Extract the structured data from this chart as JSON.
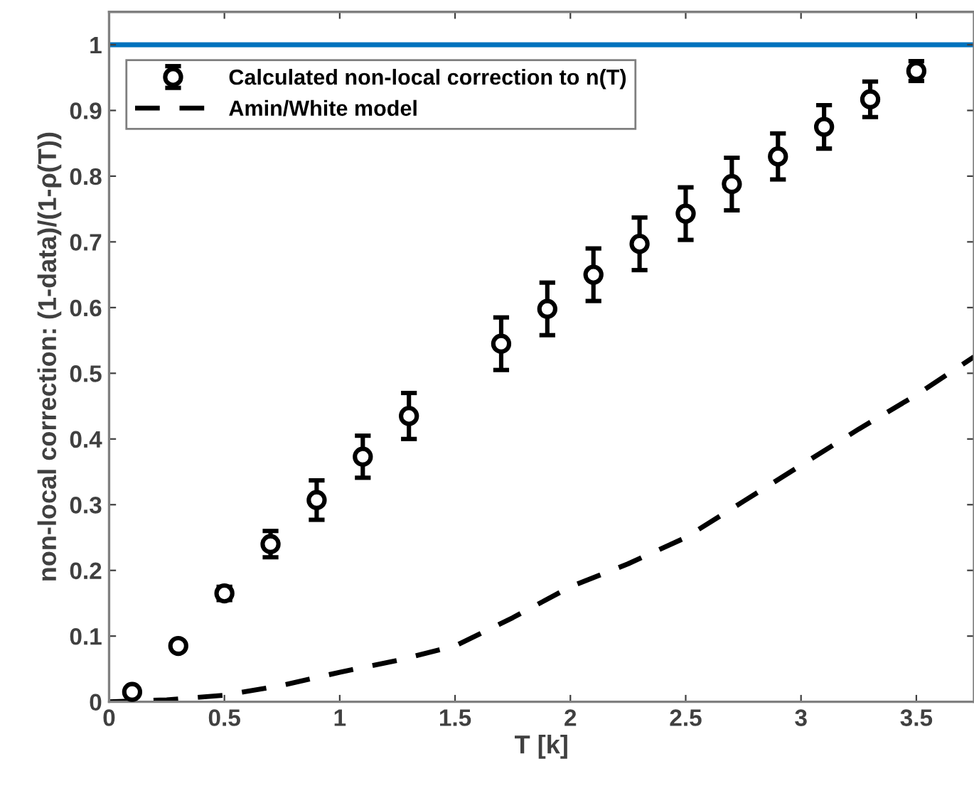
{
  "chart_data": {
    "type": "scatter",
    "xlabel": "T [k]",
    "ylabel": "non-local correction: (1-data)/(1-ρ(T))",
    "xlim": [
      0,
      3.75
    ],
    "ylim": [
      0,
      1.05
    ],
    "xticks": [
      0,
      0.5,
      1,
      1.5,
      2,
      2.5,
      3,
      3.5
    ],
    "yticks": [
      0,
      0.1,
      0.2,
      0.3,
      0.4,
      0.5,
      0.6,
      0.7,
      0.8,
      0.9,
      1
    ],
    "grid": false,
    "legend": "top left",
    "ref_lines": [
      {
        "axis": "y",
        "value": 1,
        "color": "#0072bd",
        "line_style": "solid"
      }
    ],
    "series": [
      {
        "name": "Calculated non-local correction to n(T)",
        "color": "#000000",
        "marker": "circle",
        "x": [
          0.1,
          0.3,
          0.5,
          0.7,
          0.9,
          1.1,
          1.3,
          1.7,
          1.9,
          2.1,
          2.3,
          2.5,
          2.7,
          2.9,
          3.1,
          3.3,
          3.5
        ],
        "values": [
          0.015,
          0.085,
          0.165,
          0.24,
          0.307,
          0.373,
          0.435,
          0.545,
          0.598,
          0.65,
          0.697,
          0.743,
          0.788,
          0.83,
          0.875,
          0.917,
          0.96
        ],
        "errors": [
          null,
          null,
          0.01,
          0.02,
          0.03,
          0.032,
          0.035,
          0.04,
          0.04,
          0.04,
          0.04,
          0.04,
          0.04,
          0.035,
          0.033,
          0.027,
          0.015
        ]
      },
      {
        "name": "Amin/White model",
        "type": "line",
        "color": "#000000",
        "marker": "none",
        "line_style": "dashed",
        "x": [
          0,
          0.25,
          0.5,
          0.75,
          1,
          1.25,
          1.5,
          1.75,
          2,
          2.25,
          2.5,
          2.75,
          3,
          3.25,
          3.5,
          3.75
        ],
        "values": [
          0,
          0.003,
          0.01,
          0.025,
          0.045,
          0.063,
          0.085,
          0.128,
          0.175,
          0.21,
          0.25,
          0.305,
          0.36,
          0.415,
          0.467,
          0.525
        ]
      }
    ]
  }
}
